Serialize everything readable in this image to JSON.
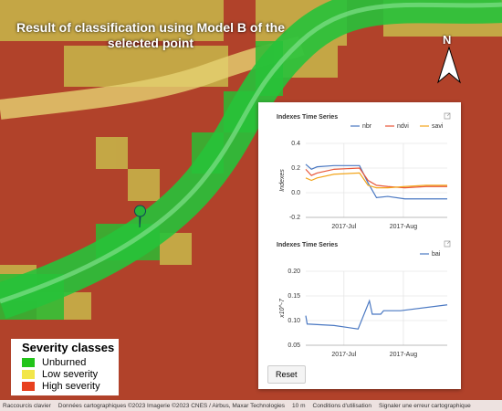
{
  "title": "Result of classification using Model B of the selected point",
  "north": "N",
  "legend": {
    "title": "Severity classes",
    "items": [
      {
        "label": "Unburned",
        "color": "#22c41a"
      },
      {
        "label": "Low severity",
        "color": "#f2e64a"
      },
      {
        "label": "High severity",
        "color": "#e8401e"
      }
    ]
  },
  "reset": "Reset",
  "attribution": [
    "Raccourcis clavier",
    "Données cartographiques ©2023 Imagerie ©2023 CNES / Airbus, Maxar Technologies",
    "10 m",
    "Conditions d'utilisation",
    "Signaler une erreur cartographique"
  ],
  "chart_data": [
    {
      "type": "line",
      "title": "Indexes Time Series",
      "ylabel": "Indexes",
      "x": [
        0,
        4,
        8,
        20,
        38,
        44,
        50,
        58,
        70,
        85,
        100
      ],
      "xlim": [
        0,
        100
      ],
      "xticks": [
        {
          "value": 27,
          "label": "2017-Jul"
        },
        {
          "value": 69,
          "label": "2017-Aug"
        }
      ],
      "ylim": [
        -0.2,
        0.4
      ],
      "yticks": [
        0.4,
        0.2,
        {
          "value": 0,
          "label": "0.0"
        },
        -0.2
      ],
      "grid": true,
      "series": [
        {
          "name": "nbr",
          "color": "#4a78c2",
          "values": [
            0.23,
            0.19,
            0.21,
            0.22,
            0.22,
            0.08,
            -0.04,
            -0.03,
            -0.05,
            -0.05,
            -0.05
          ]
        },
        {
          "name": "ndvi",
          "color": "#e8573a",
          "values": [
            0.19,
            0.14,
            0.16,
            0.19,
            0.2,
            0.1,
            0.06,
            0.05,
            0.04,
            0.05,
            0.05
          ]
        },
        {
          "name": "savi",
          "color": "#f2a51c",
          "values": [
            0.12,
            0.1,
            0.12,
            0.15,
            0.16,
            0.06,
            0.04,
            0.04,
            0.05,
            0.06,
            0.06
          ]
        }
      ]
    },
    {
      "type": "line",
      "title": "Indexes Time Series",
      "ylabel": "x10^-7",
      "x": [
        0,
        1,
        20,
        37,
        45,
        47,
        53,
        55,
        65,
        67,
        100
      ],
      "xlim": [
        0,
        100
      ],
      "xticks": [
        {
          "value": 27,
          "label": "2017-Jul"
        },
        {
          "value": 69,
          "label": "2017-Aug"
        }
      ],
      "ylim": [
        0.05,
        0.2
      ],
      "yticks": [
        {
          "value": 0.2,
          "label": "0.20"
        },
        0.15,
        {
          "value": 0.1,
          "label": "0.10"
        },
        0.05
      ],
      "grid": true,
      "series": [
        {
          "name": "bai",
          "color": "#4a78c2",
          "values": [
            0.11,
            0.093,
            0.09,
            0.083,
            0.14,
            0.113,
            0.113,
            0.12,
            0.12,
            0.12,
            0.132
          ]
        }
      ]
    }
  ]
}
